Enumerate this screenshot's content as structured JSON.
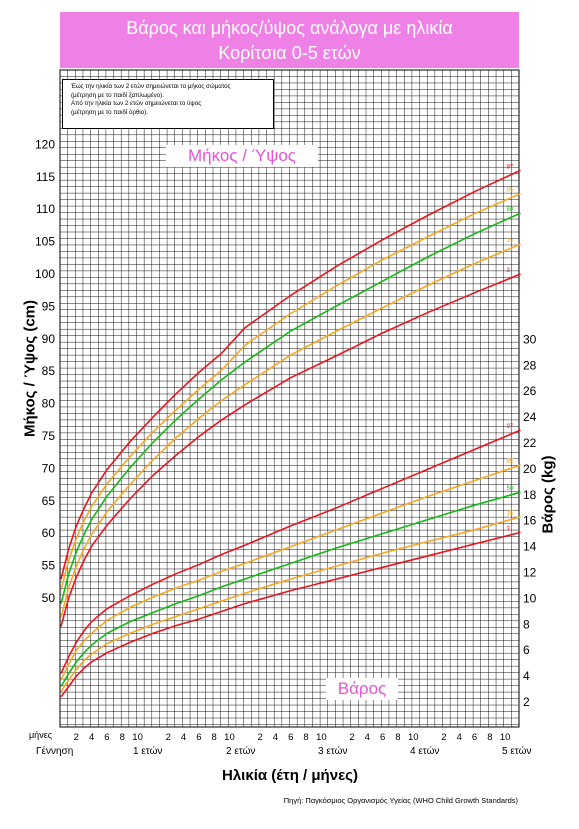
{
  "header": {
    "title_line1": "Βάρος και μήκος/ύψος ανάλογα με ηλικία",
    "title_line2": "Κορίτσια 0-5 ετών"
  },
  "note": {
    "line1": "Έως την ηλικία των 2 ετών σημειώνεται το μήκος σώματος",
    "line2": "(μέτρηση με το παιδί ξαπλωμένο).",
    "line3": "Από την ηλικία των 2 ετών σημειώνεται το ύψος",
    "line4": "(μέτρηση με το παιδί όρθιο)."
  },
  "labels": {
    "height_section": "Μήκος / Ύψος",
    "weight_section": "Βάρος",
    "months_word": "μήνες",
    "birth": "Γέννηση",
    "years": [
      "1 ετών",
      "2 ετών",
      "3 ετών",
      "4 ετών",
      "5 ετών"
    ],
    "month_ticks": [
      "2",
      "4",
      "6",
      "8",
      "10"
    ]
  },
  "colors": {
    "header_bg": "#ee80e6",
    "label_pink": "#e653d8",
    "grid": "#000000",
    "p3_p97": "#e8141e",
    "p15_p85": "#f5a623",
    "p50": "#14b814"
  },
  "chart_data": {
    "type": "line",
    "title": "Βάρος και μήκος/ύψος ανάλογα με ηλικία — Κορίτσια 0-5 ετών",
    "xlabel": "Ηλικία (έτη / μήνες)",
    "ylabel_left": "Μήκος / Ύψος (cm)",
    "ylabel_right": "Βάρος (kg)",
    "x_unit": "months",
    "xlim": [
      0,
      60
    ],
    "ylim_left": [
      45,
      120
    ],
    "ylim_right": [
      0,
      30
    ],
    "left_ticks": [
      50,
      55,
      60,
      65,
      70,
      75,
      80,
      85,
      90,
      95,
      100,
      105,
      110,
      115,
      120
    ],
    "right_ticks": [
      2,
      4,
      6,
      8,
      10,
      12,
      14,
      16,
      18,
      20,
      22,
      24,
      26,
      28,
      30
    ],
    "grid": true,
    "source": "Πηγή: Παγκόσμιος Οργανισμός Υγείας (WHO Child Growth Standards)",
    "x": [
      0,
      1,
      2,
      3,
      4,
      6,
      9,
      12,
      15,
      18,
      21,
      24,
      30,
      36,
      42,
      48,
      54,
      60
    ],
    "height_series": [
      {
        "name": "97",
        "color": "#e8141e",
        "values": [
          52.9,
          57.6,
          61.1,
          63.8,
          66.2,
          69.8,
          74.1,
          77.9,
          81.5,
          84.8,
          87.8,
          91.7,
          96.7,
          101.2,
          105.3,
          109.1,
          112.7,
          116.0
        ]
      },
      {
        "name": "85",
        "color": "#f5a623",
        "values": [
          51.2,
          55.8,
          59.2,
          61.9,
          64.1,
          67.6,
          71.8,
          75.6,
          79.0,
          82.2,
          85.2,
          89.0,
          93.9,
          98.2,
          102.2,
          105.8,
          109.3,
          112.4
        ]
      },
      {
        "name": "50",
        "color": "#14b814",
        "values": [
          49.1,
          53.7,
          57.1,
          59.8,
          62.1,
          65.7,
          70.1,
          74.0,
          77.5,
          80.7,
          83.7,
          86.4,
          91.2,
          95.1,
          98.9,
          102.7,
          106.2,
          109.4
        ]
      },
      {
        "name": "15",
        "color": "#f5a623",
        "values": [
          47.0,
          51.6,
          54.9,
          57.6,
          59.8,
          63.3,
          67.5,
          71.3,
          74.7,
          77.7,
          80.5,
          82.9,
          87.5,
          91.2,
          94.8,
          98.3,
          101.6,
          104.6
        ]
      },
      {
        "name": "3",
        "color": "#e8141e",
        "values": [
          45.6,
          50.0,
          53.2,
          55.8,
          58.0,
          61.2,
          65.3,
          68.9,
          72.0,
          74.9,
          77.5,
          79.8,
          84.0,
          87.4,
          90.9,
          94.1,
          97.1,
          100.0
        ]
      }
    ],
    "weight_series": [
      {
        "name": "97",
        "color": "#e8141e",
        "values": [
          4.2,
          5.5,
          6.6,
          7.5,
          8.2,
          9.2,
          10.2,
          11.1,
          11.9,
          12.6,
          13.4,
          14.1,
          15.6,
          17.0,
          18.5,
          20.0,
          21.5,
          23.0
        ]
      },
      {
        "name": "85",
        "color": "#f5a623",
        "values": [
          3.7,
          4.9,
          6.0,
          6.7,
          7.3,
          8.3,
          9.3,
          10.1,
          10.8,
          11.4,
          12.1,
          12.7,
          14.0,
          15.3,
          16.6,
          17.9,
          19.1,
          20.3
        ]
      },
      {
        "name": "50",
        "color": "#14b814",
        "values": [
          3.2,
          4.2,
          5.1,
          5.8,
          6.4,
          7.3,
          8.2,
          8.9,
          9.6,
          10.2,
          10.9,
          11.5,
          12.7,
          13.9,
          15.0,
          16.1,
          17.2,
          18.2
        ]
      },
      {
        "name": "15",
        "color": "#f5a623",
        "values": [
          2.8,
          3.7,
          4.5,
          5.2,
          5.7,
          6.5,
          7.3,
          8.0,
          8.6,
          9.2,
          9.8,
          10.4,
          11.5,
          12.5,
          13.5,
          14.4,
          15.3,
          16.3
        ]
      },
      {
        "name": "3",
        "color": "#e8141e",
        "values": [
          2.4,
          3.2,
          4.0,
          4.6,
          5.1,
          5.8,
          6.6,
          7.3,
          7.9,
          8.4,
          9.0,
          9.6,
          10.6,
          11.5,
          12.4,
          13.3,
          14.2,
          15.1
        ]
      }
    ]
  }
}
